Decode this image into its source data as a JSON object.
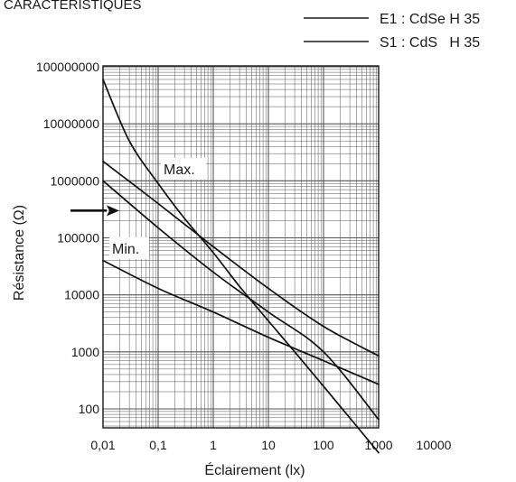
{
  "chart_data": {
    "type": "line",
    "title": "CARACTÉRISTIQUES",
    "xlabel": "Éclairement (lx)",
    "ylabel": "Résistance (Ω)",
    "x_scale": "log",
    "y_scale": "log",
    "xlim": [
      0.01,
      10000
    ],
    "ylim": [
      50,
      100000000
    ],
    "x_ticks": [
      {
        "value": 0.01,
        "label": "0,01"
      },
      {
        "value": 0.1,
        "label": "0,1"
      },
      {
        "value": 1,
        "label": "1"
      },
      {
        "value": 10,
        "label": "10"
      },
      {
        "value": 100,
        "label": "100"
      },
      {
        "value": 1000,
        "label": "1000"
      },
      {
        "value": 10000,
        "label": "10000"
      }
    ],
    "y_ticks": [
      {
        "value": 100,
        "label": "100"
      },
      {
        "value": 1000,
        "label": "1000"
      },
      {
        "value": 10000,
        "label": "10000"
      },
      {
        "value": 100000,
        "label": "100000"
      },
      {
        "value": 1000000,
        "label": "1000000"
      },
      {
        "value": 10000000,
        "label": "10000000"
      },
      {
        "value": 100000000,
        "label": "100000000"
      }
    ],
    "grid": true,
    "legend": {
      "placement": "top-right",
      "entries": [
        "E1 : CdSe H 35",
        "S1 : CdS   H 35"
      ]
    },
    "annotations": {
      "max_label": "Max.",
      "min_label": "Min.",
      "arrow_value": 300000
    },
    "series": [
      {
        "x": [
          0.01,
          0.03,
          0.1,
          0.3,
          1,
          3,
          10,
          30,
          100,
          1000
        ],
        "y": [
          60000000,
          5000000,
          900000,
          220000,
          55000,
          14000,
          3500,
          1000,
          250,
          17
        ]
      },
      {
        "x": [
          0.01,
          0.1,
          1,
          10,
          100,
          1000
        ],
        "y": [
          1000000,
          150000,
          25000,
          5000,
          1000,
          65
        ]
      },
      {
        "x": [
          0.01,
          0.1,
          1,
          10,
          100,
          1000
        ],
        "y": [
          2200000,
          400000,
          70000,
          13000,
          2800,
          850
        ]
      },
      {
        "x": [
          0.01,
          0.1,
          1,
          10,
          100,
          1000
        ],
        "y": [
          40000,
          13000,
          5000,
          1800,
          700,
          270
        ]
      }
    ]
  }
}
